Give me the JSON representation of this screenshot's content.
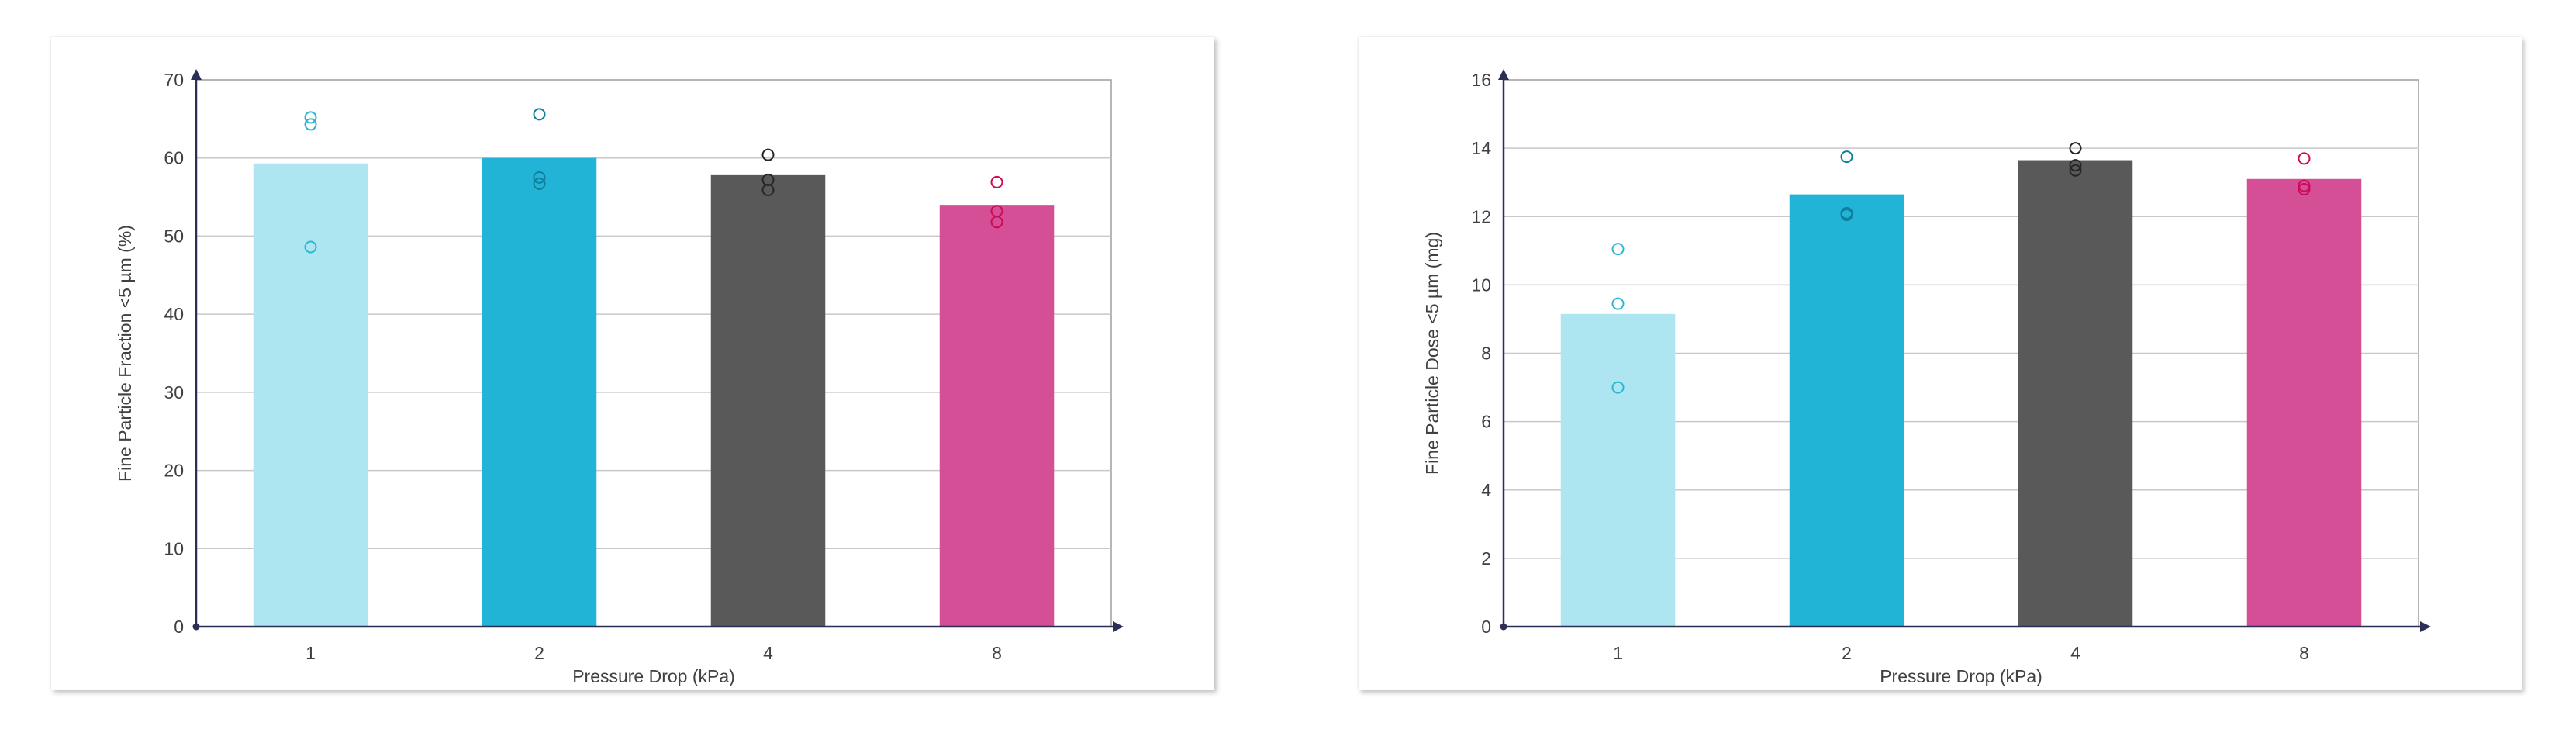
{
  "chart_data": [
    {
      "type": "bar",
      "categories": [
        "1",
        "2",
        "4",
        "8"
      ],
      "values": [
        59.3,
        60.0,
        57.8,
        54.0
      ],
      "points": [
        [
          65.2,
          64.3,
          48.6
        ],
        [
          65.6,
          57.5,
          56.7
        ],
        [
          60.4,
          57.2,
          55.9
        ],
        [
          56.9,
          53.2,
          51.8
        ]
      ],
      "xlabel": "Pressure Drop  (kPa)",
      "ylabel": "Fine Particle Fraction <5 µm  (%)",
      "ylim": [
        0,
        70
      ],
      "yticks": [
        0,
        10,
        20,
        30,
        40,
        50,
        60,
        70
      ],
      "grid": true,
      "colors": [
        "#ade6f1",
        "#22b4d7",
        "#595959",
        "#d54f96"
      ],
      "point_colors": [
        "#2bb6d2",
        "#0f7f9b",
        "#262626",
        "#cc0a55"
      ]
    },
    {
      "type": "bar",
      "categories": [
        "1",
        "2",
        "4",
        "8"
      ],
      "values": [
        9.15,
        12.65,
        13.65,
        13.1
      ],
      "points": [
        [
          11.05,
          9.45,
          7.0
        ],
        [
          13.75,
          12.1,
          12.05
        ],
        [
          14.0,
          13.5,
          13.35
        ],
        [
          13.7,
          12.9,
          12.8
        ]
      ],
      "xlabel": "Pressure Drop  (kPa)",
      "ylabel": "Fine Particle Dose <5 µm  (mg)",
      "ylim": [
        0,
        16
      ],
      "yticks": [
        0,
        2,
        4,
        6,
        8,
        10,
        12,
        14,
        16
      ],
      "grid": true,
      "colors": [
        "#ade6f1",
        "#22b4d7",
        "#595959",
        "#d54f96"
      ],
      "point_colors": [
        "#2bb6d2",
        "#0f7f9b",
        "#262626",
        "#cc0a55"
      ]
    }
  ]
}
